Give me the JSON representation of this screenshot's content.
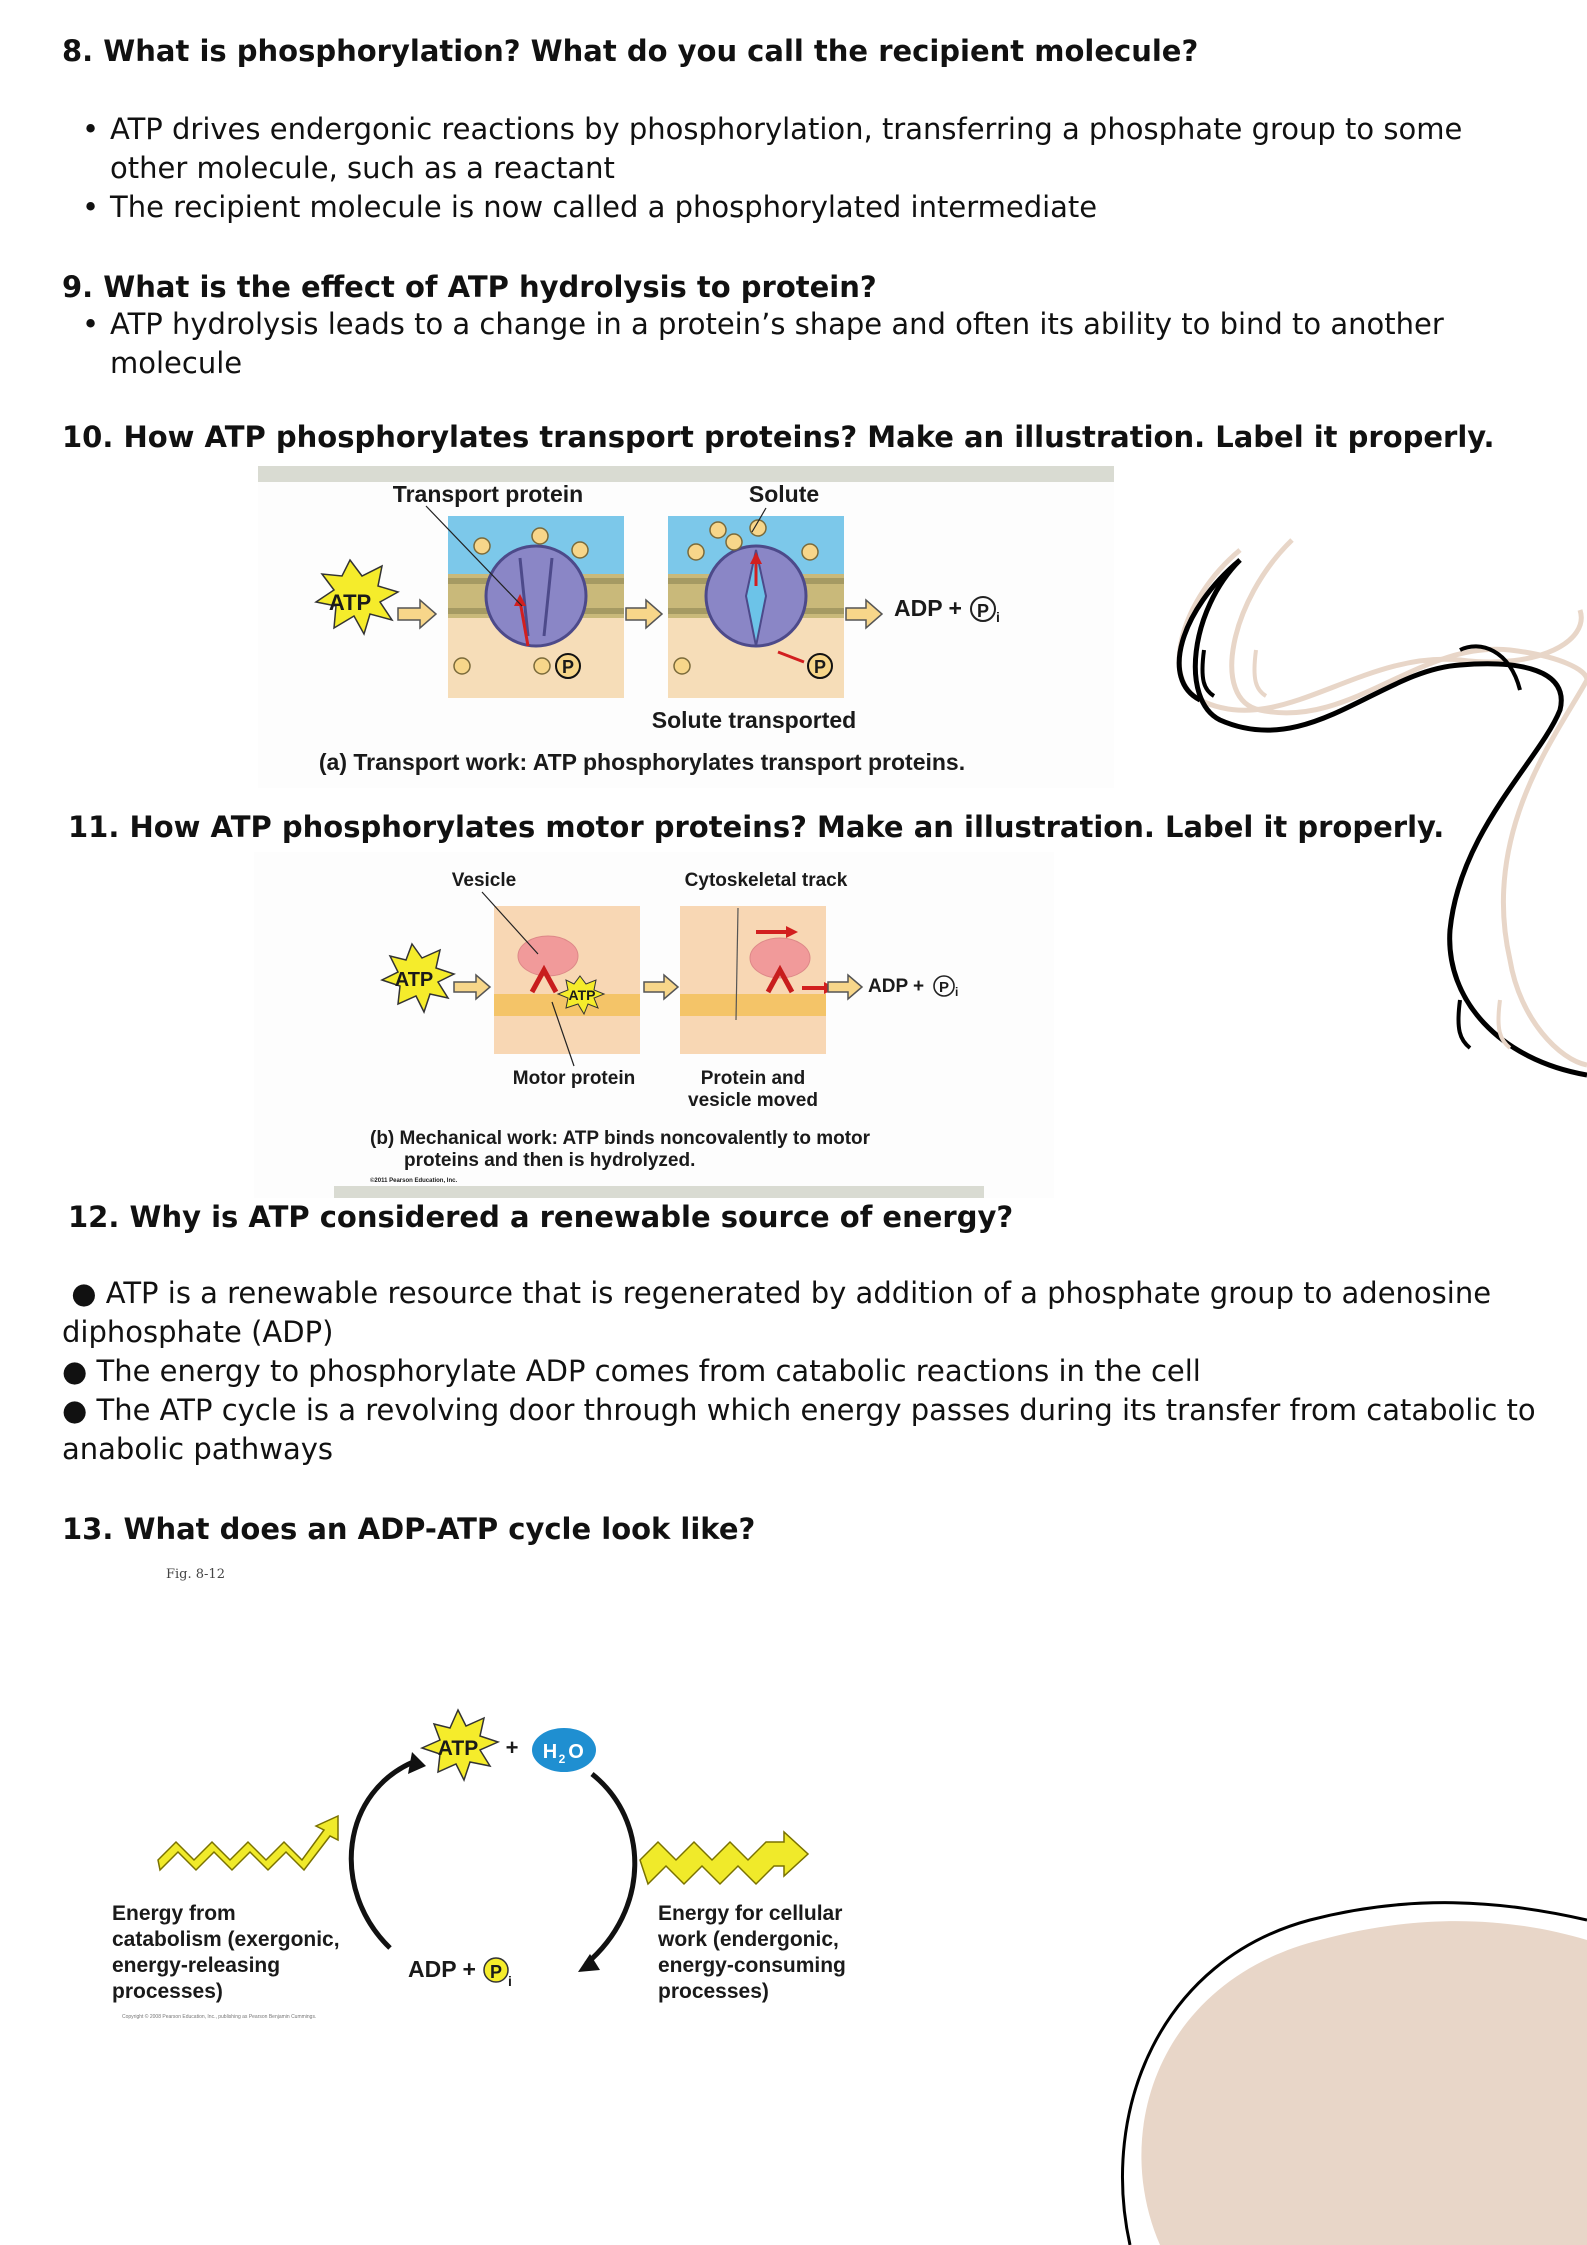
{
  "q8": {
    "title": "8. What is phosphorylation? What do you call the recipient molecule?",
    "bullets": [
      "ATP drives endergonic reactions by phosphorylation, transferring a phosphate group to some other molecule, such as a reactant",
      "The recipient molecule is now called a phosphorylated intermediate"
    ]
  },
  "q9": {
    "title": "9. What is the effect of ATP hydrolysis to protein?",
    "bullets": [
      "ATP hydrolysis leads to a change in a protein’s shape and often its ability to bind to another molecule"
    ]
  },
  "q10": {
    "title": "10. How ATP phosphorylates transport proteins? Make an illustration. Label it properly.",
    "figure": {
      "transport_protein": "Transport protein",
      "solute": "Solute",
      "atp": "ATP",
      "adp": "ADP +",
      "p": "P",
      "pi": "P",
      "pi_sub": "i",
      "solute_transported": "Solute transported",
      "caption": "(a) Transport work: ATP phosphorylates transport proteins."
    }
  },
  "q11": {
    "title": "11. How ATP phosphorylates motor proteins? Make an illustration. Label it properly.",
    "figure": {
      "vesicle": "Vesicle",
      "cytoskeletal_track": "Cytoskeletal track",
      "atp": "ATP",
      "atp_small": "ATP",
      "adp": "ADP +",
      "pi": "P",
      "pi_sub": "i",
      "motor_protein": "Motor protein",
      "moved_line1": "Protein and",
      "moved_line2": "vesicle moved",
      "caption_line1": "(b) Mechanical work: ATP binds noncovalently to motor",
      "caption_line2": "proteins and then is hydrolyzed.",
      "copyright": "©2011 Pearson Education, Inc."
    }
  },
  "q12": {
    "title": "12. Why is ATP considered a renewable source of energy?",
    "lines": [
      "ATP is a renewable resource that is regenerated by addition of a phosphate group to adenosine diphosphate (ADP)",
      "The energy to phosphorylate ADP comes from catabolic reactions in the cell",
      "The ATP cycle is a revolving door through which energy passes during its transfer from catabolic to anabolic pathways"
    ],
    "bullet_glyph": "●"
  },
  "q13": {
    "title": "13. What does an ADP-ATP cycle look like?",
    "figure": {
      "fig_label": "Fig. 8-12",
      "atp": "ATP",
      "plus": "+",
      "h2o": "H",
      "h2o_sub": "2",
      "h2o_o": "O",
      "adp": "ADP +",
      "pi": "P",
      "pi_sub": "i",
      "left_lines": [
        "Energy from",
        "catabolism (exergonic,",
        "energy-releasing",
        "processes)"
      ],
      "right_lines": [
        "Energy for cellular",
        "work (endergonic,",
        "energy-consuming",
        "processes)"
      ],
      "copyright": "Copyright © 2008 Pearson Education, Inc., publishing as Pearson Benjamin Cummings."
    }
  },
  "colors": {
    "beige": "#e8d6c8",
    "atp_yellow": "#f5ec2b",
    "membrane_blue": "#7cc8ea",
    "cyto_tan": "#f6ddb8"
  }
}
